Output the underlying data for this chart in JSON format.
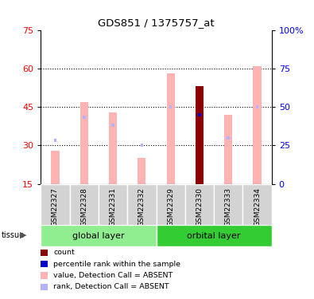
{
  "title": "GDS851 / 1375757_at",
  "samples": [
    "GSM22327",
    "GSM22328",
    "GSM22331",
    "GSM22332",
    "GSM22329",
    "GSM22330",
    "GSM22333",
    "GSM22334"
  ],
  "value_absent": [
    28,
    47,
    43,
    25,
    58,
    53,
    42,
    61
  ],
  "rank_absent": [
    32,
    41,
    38,
    30,
    45,
    null,
    33,
    45
  ],
  "count": [
    null,
    null,
    null,
    null,
    null,
    53,
    null,
    null
  ],
  "percentile_rank": [
    null,
    null,
    null,
    null,
    null,
    42,
    null,
    null
  ],
  "ylim": [
    15,
    75
  ],
  "yticks_left": [
    15,
    30,
    45,
    60,
    75
  ],
  "grid_lines": [
    30,
    45,
    60
  ],
  "right_ticks_pct": [
    0,
    25,
    50,
    75,
    100
  ],
  "color_value_absent": "#ffb3b3",
  "color_rank_absent": "#b3b3ff",
  "color_count": "#8b0000",
  "color_percentile_rank": "#0000cd",
  "global_layer_color": "#90ee90",
  "orbital_layer_color": "#33cc33",
  "global_layer_samples": [
    0,
    1,
    2,
    3
  ],
  "orbital_layer_samples": [
    4,
    5,
    6,
    7
  ],
  "legend_items": [
    {
      "label": "count",
      "color": "#8b0000"
    },
    {
      "label": "percentile rank within the sample",
      "color": "#0000cd"
    },
    {
      "label": "value, Detection Call = ABSENT",
      "color": "#ffb3b3"
    },
    {
      "label": "rank, Detection Call = ABSENT",
      "color": "#b3b3ff"
    }
  ]
}
